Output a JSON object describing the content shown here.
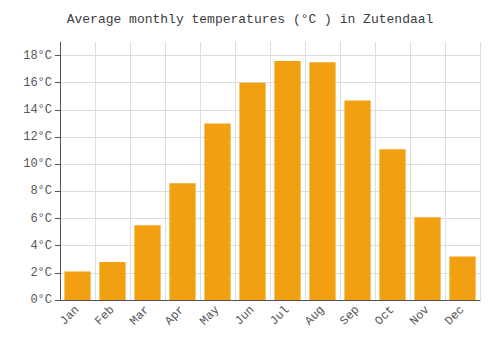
{
  "chart_data": {
    "type": "bar",
    "title": "Average monthly temperatures (°C ) in Zutendaal",
    "categories": [
      "Jan",
      "Feb",
      "Mar",
      "Apr",
      "May",
      "Jun",
      "Jul",
      "Aug",
      "Sep",
      "Oct",
      "Nov",
      "Dec"
    ],
    "values": [
      2.1,
      2.8,
      5.5,
      8.6,
      13.0,
      16.0,
      17.6,
      17.5,
      14.7,
      11.1,
      6.1,
      3.2
    ],
    "color": "#F0A010",
    "ylim": [
      0,
      19
    ],
    "yticks": [
      {
        "value": 0,
        "label": "0°C"
      },
      {
        "value": 2,
        "label": "2°C"
      },
      {
        "value": 4,
        "label": "4°C"
      },
      {
        "value": 6,
        "label": "6°C"
      },
      {
        "value": 8,
        "label": "8°C"
      },
      {
        "value": 10,
        "label": "10°C"
      },
      {
        "value": 12,
        "label": "12°C"
      },
      {
        "value": 14,
        "label": "14°C"
      },
      {
        "value": 16,
        "label": "16°C"
      },
      {
        "value": 18,
        "label": "18°C"
      }
    ],
    "grid": true
  }
}
